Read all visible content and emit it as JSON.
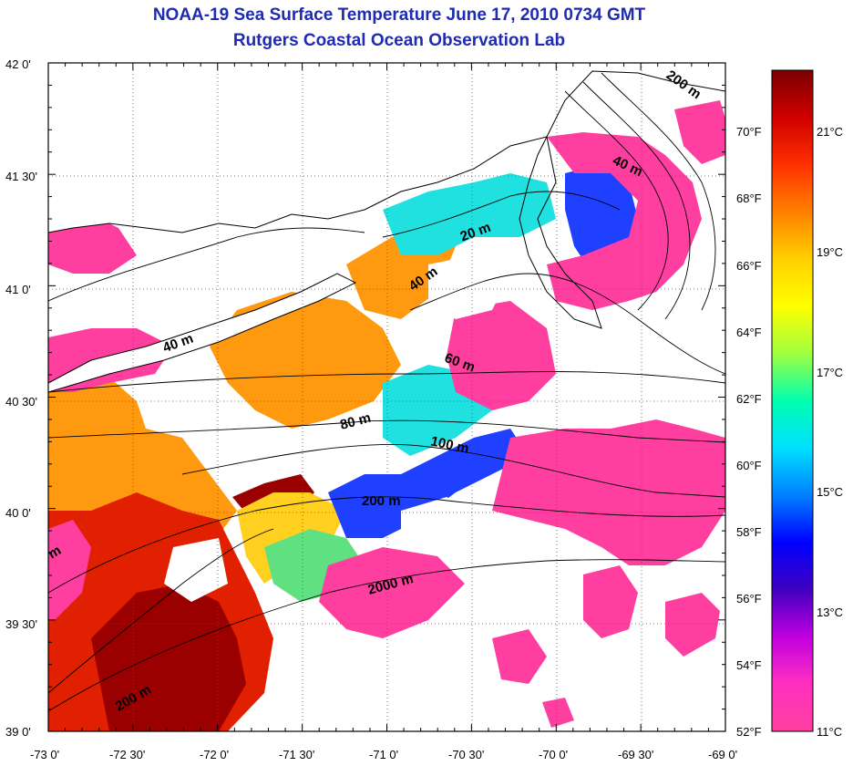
{
  "title": "NOAA-19 Sea Surface Temperature June 17, 2010 0734 GMT",
  "subtitle": "Rutgers Coastal Ocean Observation Lab",
  "map": {
    "lon_labels": [
      "-73 0'",
      "-72 30'",
      "-72 0'",
      "-71 30'",
      "-71 0'",
      "-70 30'",
      "-70 0'",
      "-69 30'",
      "-69 0'"
    ],
    "lat_labels": [
      "42 0'",
      "41 30'",
      "41 0'",
      "40 30'",
      "40 0'",
      "39 30'",
      "39 0'"
    ],
    "depth_contour_labels": [
      "200 m",
      "40 m",
      "20 m",
      "40 m",
      "40 m",
      "60 m",
      "80 m",
      "100 m",
      "200 m",
      "2000 m",
      "200 m",
      "m"
    ]
  },
  "colorbar": {
    "fahrenheit_labels": [
      "70°F",
      "68°F",
      "66°F",
      "64°F",
      "62°F",
      "60°F",
      "58°F",
      "56°F",
      "54°F",
      "52°F"
    ],
    "celsius_labels": [
      "21°C",
      "19°C",
      "17°C",
      "15°C",
      "13°C",
      "11°C"
    ],
    "colors": [
      "#7a0000",
      "#d00000",
      "#ff3000",
      "#ff8000",
      "#ffd000",
      "#ffff00",
      "#a0ff40",
      "#00ffb0",
      "#00e0ff",
      "#0080ff",
      "#0000ff",
      "#4000c0",
      "#c000e0",
      "#ff30c0",
      "#ff40a0"
    ]
  },
  "colors": {
    "title": "#1f2bb0",
    "sst_pink": "#ff3f9f",
    "sst_orange": "#ff9a10",
    "sst_red": "#e02000",
    "sst_darkred": "#9a0000",
    "sst_yellow": "#ffd020",
    "sst_green": "#60e080",
    "sst_cyan": "#20e0e0",
    "sst_blue": "#2040ff"
  }
}
